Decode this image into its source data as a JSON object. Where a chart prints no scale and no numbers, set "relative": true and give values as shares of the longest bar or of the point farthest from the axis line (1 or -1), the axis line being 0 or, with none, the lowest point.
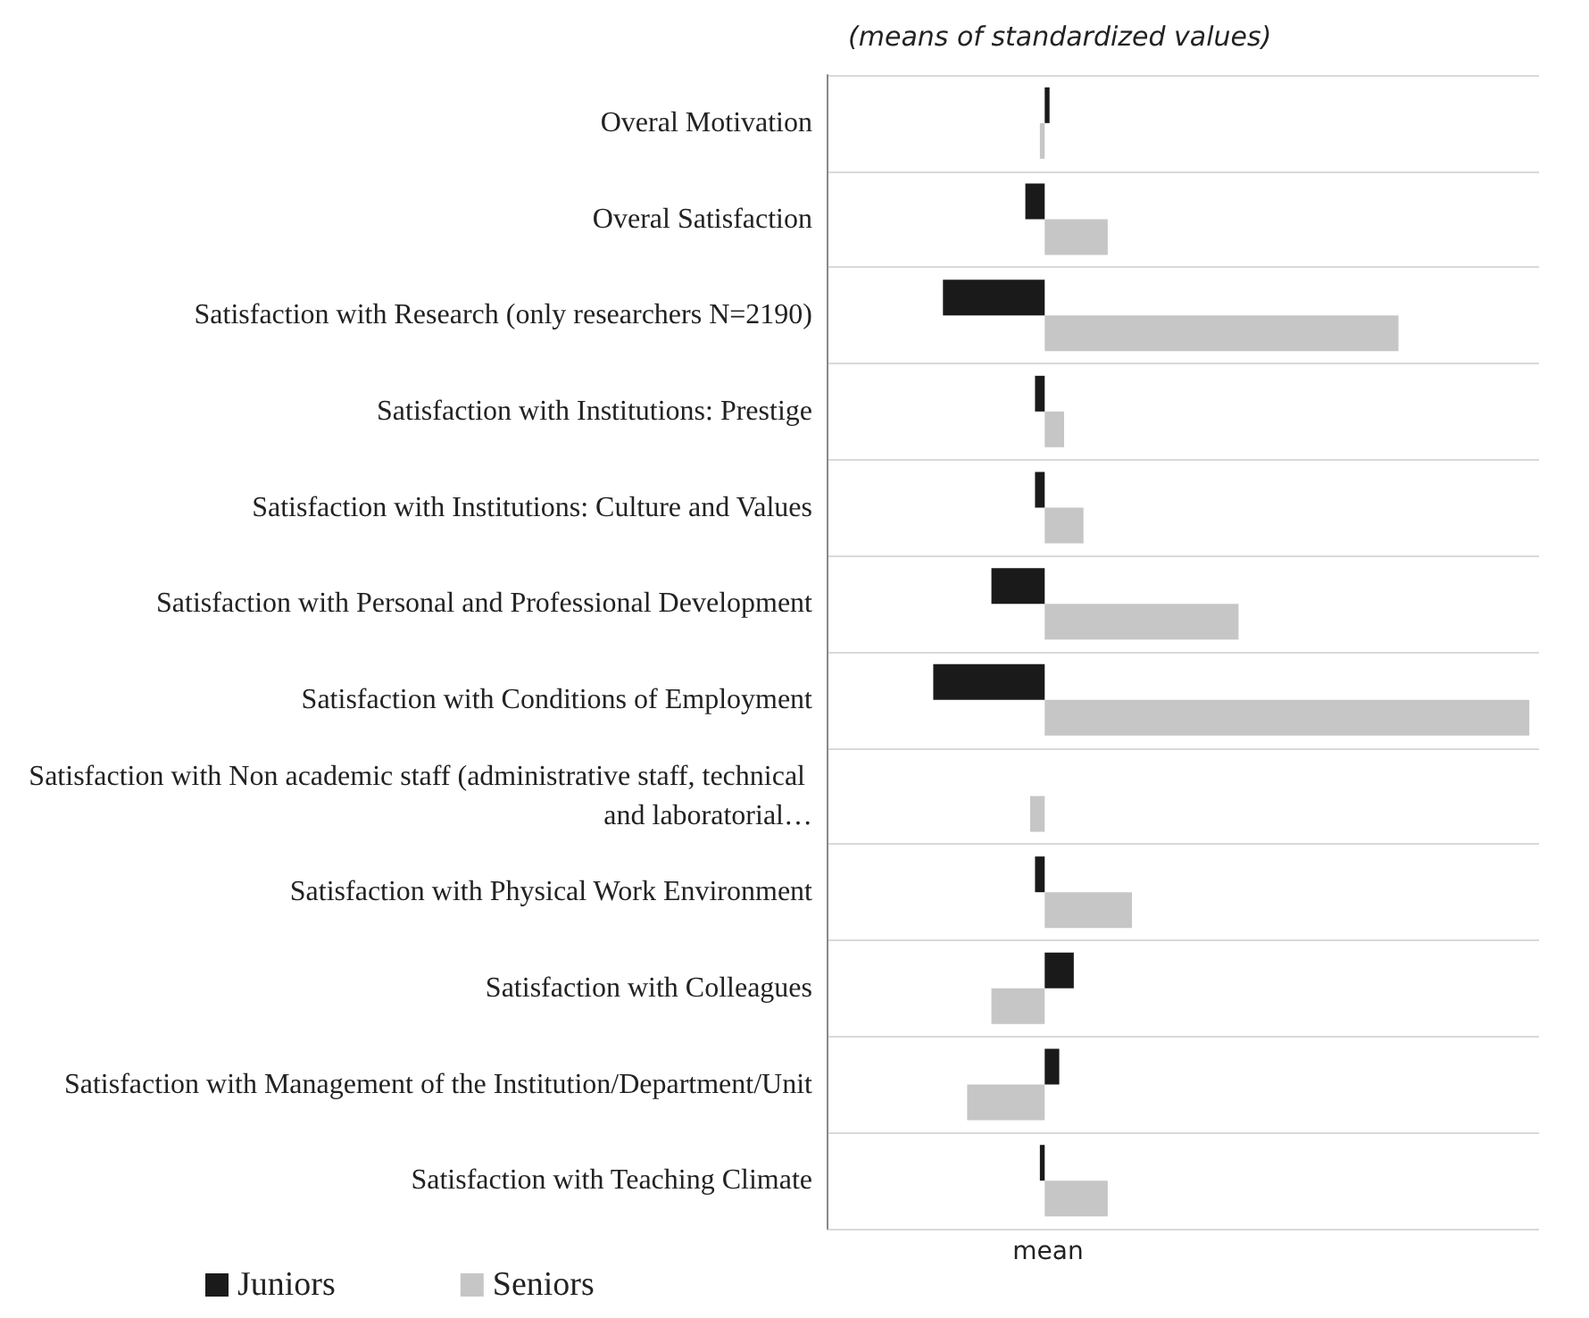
{
  "chart_data": {
    "type": "bar",
    "orientation": "horizontal",
    "relative": true,
    "title": "(means of standardized values)",
    "xlabel": "mean",
    "categories": [
      "Overal Motivation",
      "Overal Satisfaction",
      "Satisfaction with Research (only researchers N=2190)",
      "Satisfaction with Institutions: Prestige",
      "Satisfaction with Institutions: Culture and Values",
      "Satisfaction with Personal and Professional Development",
      "Satisfaction with Conditions of Employment",
      "Satisfaction with Non academic staff (administrative staff, technical and laboratorial…",
      "Satisfaction with Physical Work Environment",
      "Satisfaction with Colleagues",
      "Satisfaction with Management of the Institution/Department/Unit",
      "Satisfaction with Teaching Climate"
    ],
    "series": [
      {
        "name": "Juniors",
        "color": "#1a1a1a",
        "values": [
          0.01,
          -0.04,
          -0.21,
          -0.02,
          -0.02,
          -0.11,
          -0.23,
          0,
          -0.02,
          0.06,
          0.03,
          -0.01
        ]
      },
      {
        "name": "Seniors",
        "color": "#c6c6c6",
        "values": [
          -0.01,
          0.13,
          0.73,
          0.04,
          0.08,
          0.4,
          1,
          -0.03,
          0.18,
          -0.11,
          -0.16,
          0.13
        ]
      }
    ],
    "grid": "y",
    "legend": "bottom left"
  }
}
